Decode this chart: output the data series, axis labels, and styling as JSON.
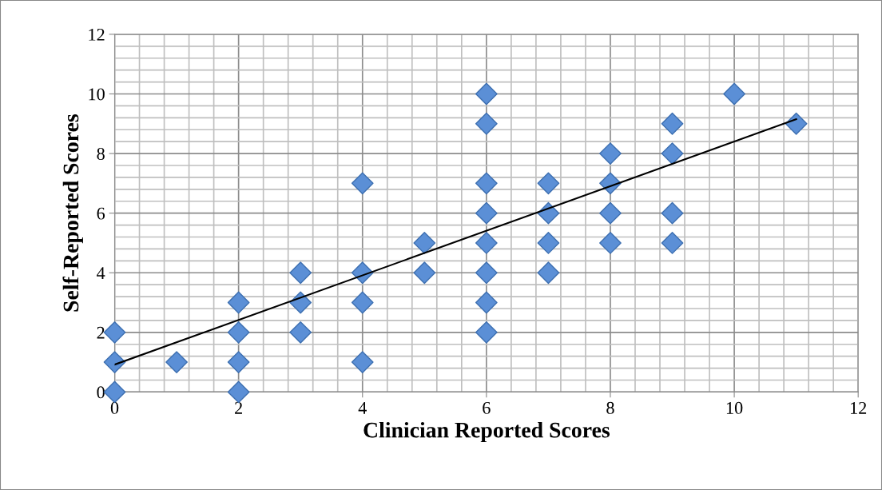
{
  "chart_data": {
    "type": "scatter",
    "xlabel": "Clinician Reported Scores",
    "ylabel": "Self-Reported Scores",
    "xlim": [
      0,
      12
    ],
    "ylim": [
      0,
      12
    ],
    "xticks": [
      0,
      2,
      4,
      6,
      8,
      10,
      12
    ],
    "yticks": [
      0,
      2,
      4,
      6,
      8,
      10,
      12
    ],
    "grid": true,
    "marker": "diamond",
    "series": [
      {
        "color": "#5b8fd6",
        "x": [
          0,
          0,
          0,
          1,
          2,
          2,
          2,
          2,
          3,
          3,
          3,
          4,
          4,
          4,
          4,
          5,
          5,
          6,
          6,
          6,
          6,
          6,
          6,
          6,
          6,
          7,
          7,
          7,
          7,
          8,
          8,
          8,
          8,
          9,
          9,
          9,
          9,
          10,
          11
        ],
        "values": [
          0,
          1,
          2,
          1,
          0,
          1,
          2,
          3,
          2,
          3,
          4,
          1,
          3,
          4,
          7,
          4,
          5,
          2,
          3,
          4,
          5,
          6,
          7,
          9,
          10,
          4,
          5,
          6,
          7,
          5,
          6,
          7,
          8,
          5,
          6,
          8,
          9,
          10,
          9
        ]
      },
      {
        "type": "line",
        "color": "#000000",
        "marker": "none",
        "x": [
          0,
          11
        ],
        "values": [
          0.92,
          9.15
        ]
      }
    ]
  }
}
